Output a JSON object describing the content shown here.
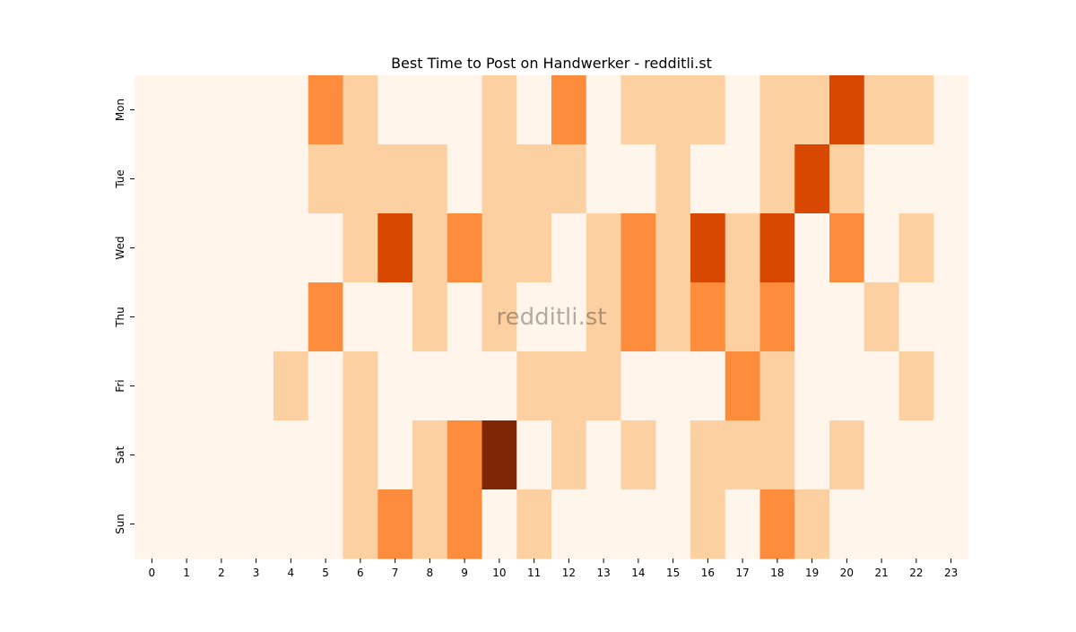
{
  "chart_data": {
    "type": "heatmap",
    "title": "Best Time to Post on Handwerker - redditli.st",
    "watermark": "redditli.st",
    "xlabel": "",
    "ylabel": "",
    "x": [
      "0",
      "1",
      "2",
      "3",
      "4",
      "5",
      "6",
      "7",
      "8",
      "9",
      "10",
      "11",
      "12",
      "13",
      "14",
      "15",
      "16",
      "17",
      "18",
      "19",
      "20",
      "21",
      "22",
      "23"
    ],
    "y": [
      "Mon",
      "Tue",
      "Wed",
      "Thu",
      "Fri",
      "Sat",
      "Sun"
    ],
    "value_scale": "relative level 0-4 (0 = lightest, 4 = darkest)",
    "values": [
      [
        0,
        0,
        0,
        0,
        0,
        2,
        1,
        0,
        0,
        0,
        1,
        0,
        2,
        0,
        1,
        1,
        1,
        0,
        1,
        1,
        3,
        1,
        1,
        0
      ],
      [
        0,
        0,
        0,
        0,
        0,
        1,
        1,
        1,
        1,
        0,
        1,
        1,
        1,
        0,
        0,
        1,
        0,
        0,
        1,
        3,
        1,
        0,
        0,
        0
      ],
      [
        0,
        0,
        0,
        0,
        0,
        0,
        1,
        3,
        1,
        2,
        1,
        1,
        0,
        1,
        2,
        1,
        3,
        1,
        3,
        0,
        2,
        0,
        1,
        0
      ],
      [
        0,
        0,
        0,
        0,
        0,
        2,
        0,
        0,
        1,
        0,
        1,
        0,
        0,
        1,
        2,
        1,
        2,
        1,
        2,
        0,
        0,
        1,
        0,
        0
      ],
      [
        0,
        0,
        0,
        0,
        1,
        0,
        1,
        0,
        0,
        0,
        0,
        1,
        1,
        1,
        0,
        0,
        0,
        2,
        1,
        0,
        0,
        0,
        1,
        0
      ],
      [
        0,
        0,
        0,
        0,
        0,
        0,
        1,
        0,
        1,
        2,
        4,
        0,
        1,
        0,
        1,
        0,
        1,
        1,
        1,
        0,
        1,
        0,
        0,
        0
      ],
      [
        0,
        0,
        0,
        0,
        0,
        0,
        1,
        2,
        1,
        2,
        0,
        1,
        0,
        0,
        0,
        0,
        1,
        0,
        2,
        1,
        0,
        0,
        0,
        0
      ]
    ],
    "colormap": [
      "#fff5eb",
      "#fdd0a2",
      "#fd8d3c",
      "#d94801",
      "#7f2704"
    ],
    "grid": false,
    "legend": "none"
  }
}
